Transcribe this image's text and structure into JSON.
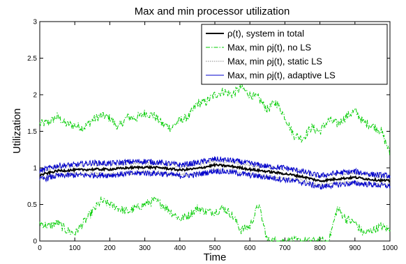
{
  "chart_data": {
    "type": "line",
    "title": "Max and min processor utilization",
    "xlabel": "Time",
    "ylabel": "Utilization",
    "xlim": [
      0,
      1000
    ],
    "ylim": [
      0,
      3
    ],
    "xticks": [
      0,
      100,
      200,
      300,
      400,
      500,
      600,
      700,
      800,
      900,
      1000
    ],
    "yticks": [
      0,
      0.5,
      1,
      1.5,
      2,
      2.5,
      3
    ],
    "ytick_labels": [
      "0",
      "0.5",
      "1",
      "1.5",
      "2",
      "2.5",
      "3"
    ],
    "grid": false,
    "legend_position": "top-right",
    "series": [
      {
        "name": "ρ(t), system in total",
        "color": "#000000",
        "style": "solid",
        "x": [
          0,
          50,
          100,
          150,
          200,
          250,
          300,
          350,
          400,
          450,
          500,
          550,
          600,
          650,
          700,
          750,
          800,
          850,
          900,
          950,
          1000
        ],
        "y": [
          0.9,
          0.96,
          0.97,
          0.98,
          0.98,
          1.0,
          1.01,
          1.0,
          0.97,
          0.99,
          1.04,
          1.02,
          0.98,
          0.95,
          0.92,
          0.88,
          0.82,
          0.85,
          0.87,
          0.84,
          0.82
        ]
      },
      {
        "name": "Max, min ρj(t), no LS",
        "color": "#00cc00",
        "style": "dashdot",
        "x": [
          0,
          25,
          50,
          75,
          100,
          125,
          150,
          175,
          200,
          225,
          250,
          275,
          300,
          325,
          350,
          375,
          400,
          425,
          450,
          475,
          500,
          525,
          550,
          575,
          600,
          625,
          650,
          675,
          700,
          725,
          750,
          775,
          800,
          825,
          850,
          875,
          900,
          925,
          950,
          975,
          1000
        ],
        "y": [
          1.6,
          1.62,
          1.7,
          1.6,
          1.58,
          1.55,
          1.65,
          1.72,
          1.68,
          1.55,
          1.7,
          1.68,
          1.75,
          1.72,
          1.6,
          1.55,
          1.65,
          1.7,
          1.88,
          1.9,
          2.0,
          2.05,
          2.0,
          2.1,
          2.0,
          1.95,
          1.8,
          1.9,
          1.7,
          1.45,
          1.4,
          1.55,
          1.5,
          1.65,
          1.6,
          1.7,
          1.78,
          1.62,
          1.58,
          1.5,
          1.2
        ],
        "y_min": [
          0.25,
          0.2,
          0.25,
          0.15,
          0.1,
          0.25,
          0.4,
          0.55,
          0.5,
          0.45,
          0.4,
          0.45,
          0.5,
          0.55,
          0.5,
          0.4,
          0.3,
          0.35,
          0.45,
          0.4,
          0.4,
          0.45,
          0.35,
          0.15,
          0.2,
          0.5,
          0.0,
          0.0,
          0.0,
          0.0,
          0.0,
          0.0,
          0.0,
          0.0,
          0.45,
          0.3,
          0.25,
          0.1,
          0.15,
          0.2,
          0.15
        ]
      },
      {
        "name": "Max, min ρj(t), static LS",
        "color": "#888888",
        "style": "dotted",
        "x": [
          0,
          50,
          100,
          150,
          200,
          250,
          300,
          350,
          400,
          450,
          500,
          550,
          600,
          650,
          700,
          750,
          800,
          850,
          900,
          950,
          1000
        ],
        "y": [
          0.95,
          1.02,
          1.03,
          1.05,
          1.05,
          1.06,
          1.07,
          1.06,
          1.03,
          1.05,
          1.1,
          1.08,
          1.04,
          1.01,
          0.98,
          0.94,
          0.88,
          0.91,
          0.93,
          0.9,
          0.88
        ],
        "y_min": [
          0.85,
          0.9,
          0.91,
          0.92,
          0.91,
          0.93,
          0.94,
          0.93,
          0.9,
          0.92,
          0.97,
          0.95,
          0.91,
          0.88,
          0.86,
          0.82,
          0.76,
          0.79,
          0.81,
          0.78,
          0.76
        ]
      },
      {
        "name": "Max, min ρj(t), adaptive LS",
        "color": "#0000cc",
        "style": "solid",
        "x": [
          0,
          50,
          100,
          150,
          200,
          250,
          300,
          350,
          400,
          450,
          500,
          550,
          600,
          650,
          700,
          750,
          800,
          850,
          900,
          950,
          1000
        ],
        "y": [
          0.96,
          1.03,
          1.04,
          1.07,
          1.06,
          1.08,
          1.09,
          1.07,
          1.04,
          1.07,
          1.12,
          1.1,
          1.06,
          1.02,
          1.0,
          0.95,
          0.89,
          0.93,
          0.95,
          0.91,
          0.89
        ],
        "y_min": [
          0.84,
          0.89,
          0.9,
          0.9,
          0.9,
          0.92,
          0.93,
          0.92,
          0.89,
          0.91,
          0.96,
          0.94,
          0.9,
          0.87,
          0.84,
          0.8,
          0.74,
          0.77,
          0.79,
          0.77,
          0.75
        ]
      }
    ]
  }
}
